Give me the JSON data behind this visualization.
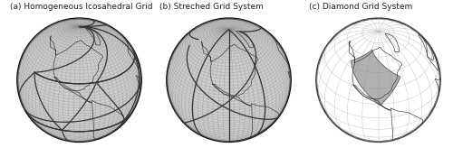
{
  "title_a": "(a) Homogeneous Icosahedral Grid",
  "title_b": "(b) Streched Grid System",
  "title_c": "(c) Diamond Grid System",
  "title_fontsize": 6.5,
  "title_color": "#222222",
  "bg_color": "#ffffff",
  "globe_color_ab": "#cccccc",
  "globe_edge_color": "#111111",
  "globe_lw": 1.5,
  "grid_color_a": "#888888",
  "grid_lw_a": 0.18,
  "grid_color_b": "#888888",
  "grid_lw_b": 0.18,
  "bold_arc_color": "#333333",
  "bold_arc_lw": 0.9,
  "coastline_color": "#333333",
  "coastline_lw": 0.45,
  "diamond_fill_color": "#888888",
  "diamond_fill_alpha": 0.65,
  "globe_c_edge": "#444444",
  "figsize": [
    5.0,
    1.74
  ],
  "dpi": 100,
  "lon0_a": -90,
  "lat0_a": 30,
  "lon0_b": -100,
  "lat0_b": 35,
  "lon0_c": -90,
  "lat0_c": 38
}
